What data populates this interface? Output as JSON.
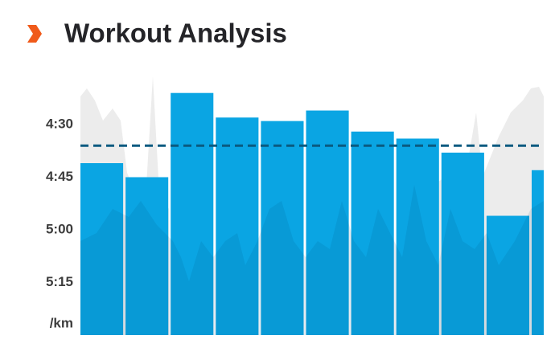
{
  "chart_data": {
    "type": "bar",
    "title": "Workout Analysis",
    "y_unit_label": "/km",
    "values": [
      281,
      285,
      261,
      268,
      269,
      266,
      272,
      274,
      278,
      296,
      283
    ],
    "color": "#0aa5e3",
    "ylim": [
      255,
      330
    ],
    "y_inverted": true,
    "yticks": [
      {
        "value": 270,
        "label": "4:30"
      },
      {
        "value": 285,
        "label": "4:45"
      },
      {
        "value": 300,
        "label": "5:00"
      },
      {
        "value": 315,
        "label": "5:15"
      }
    ],
    "reference_line": 276,
    "reference_color": "#0b5a80"
  }
}
